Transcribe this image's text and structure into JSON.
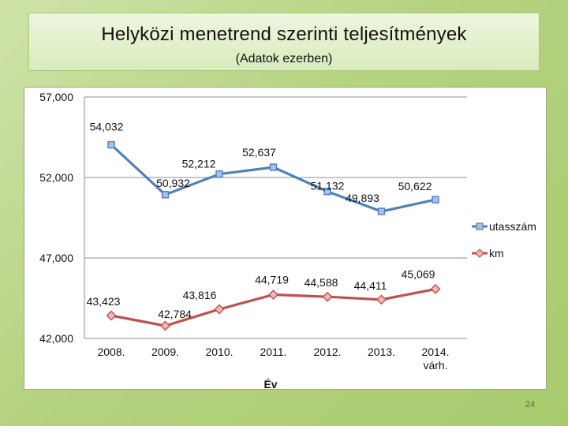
{
  "slide": {
    "title": "Helyközi menetrend szerinti teljesítmények",
    "subtitle": "(Adatok ezerben)",
    "page_number": "24"
  },
  "chart_data": {
    "type": "line",
    "categories": [
      "2008.",
      "2009.",
      "2010.",
      "2011.",
      "2012.",
      "2013.",
      "2014. várh."
    ],
    "category_lines": [
      [
        "2008."
      ],
      [
        "2009."
      ],
      [
        "2010."
      ],
      [
        "2011."
      ],
      [
        "2012."
      ],
      [
        "2013."
      ],
      [
        "2014.",
        "várh."
      ]
    ],
    "xlabel": "Év",
    "ylabel": "",
    "ylim": [
      42000,
      57000
    ],
    "yticks": [
      42000,
      47000,
      52000,
      57000
    ],
    "ytick_labels": [
      "42,000",
      "47,000",
      "52,000",
      "57,000"
    ],
    "grid": "horizontal",
    "legend_position": "right",
    "series": [
      {
        "name": "utasszám",
        "color": "#4f81bd",
        "marker": "square",
        "values": [
          54032,
          50932,
          52212,
          52637,
          51132,
          49893,
          50622
        ],
        "labels": [
          "54,032",
          "50,932",
          "52,212",
          "52,637",
          "51,132",
          "49,893",
          "50,622"
        ]
      },
      {
        "name": "km",
        "color": "#c0504d",
        "marker": "diamond",
        "values": [
          43423,
          42784,
          43816,
          44719,
          44588,
          44411,
          45069
        ],
        "labels": [
          "43,423",
          "42,784",
          "43,816",
          "44,719",
          "44,588",
          "44,411",
          "45,069"
        ]
      }
    ]
  }
}
